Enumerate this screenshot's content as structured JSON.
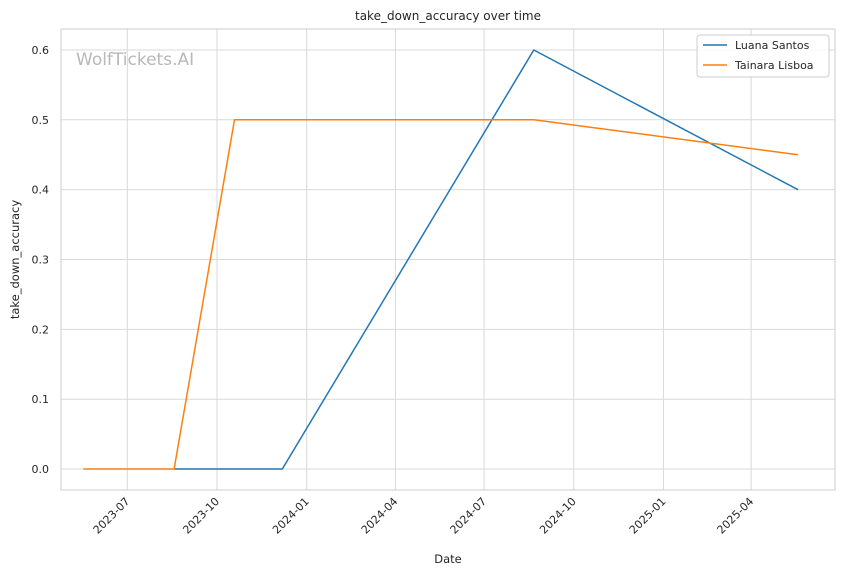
{
  "chart_data": {
    "type": "line",
    "title": "take_down_accuracy over time",
    "xlabel": "Date",
    "ylabel": "take_down_accuracy",
    "watermark": "WolfTickets.AI",
    "x_ticks": [
      "2023-07",
      "2023-10",
      "2024-01",
      "2024-04",
      "2024-07",
      "2024-10",
      "2025-01",
      "2025-04"
    ],
    "y_ticks": [
      "0.0",
      "0.1",
      "0.2",
      "0.3",
      "0.4",
      "0.5",
      "0.6"
    ],
    "xlim": [
      "2023-04-24",
      "2025-06-26"
    ],
    "ylim": [
      -0.03,
      0.63
    ],
    "grid": true,
    "legend_position": "top-right",
    "series": [
      {
        "name": "Luana Santos",
        "color": "#1f77b4",
        "points": [
          {
            "x": "2023-08-18",
            "y": 0.0
          },
          {
            "x": "2023-12-07",
            "y": 0.0
          },
          {
            "x": "2024-08-21",
            "y": 0.6
          },
          {
            "x": "2025-05-19",
            "y": 0.4
          }
        ]
      },
      {
        "name": "Tainara Lisboa",
        "color": "#ff7f0e",
        "points": [
          {
            "x": "2023-05-17",
            "y": 0.0
          },
          {
            "x": "2023-08-18",
            "y": 0.0
          },
          {
            "x": "2023-10-19",
            "y": 0.5
          },
          {
            "x": "2024-08-21",
            "y": 0.5
          },
          {
            "x": "2025-05-19",
            "y": 0.45
          }
        ]
      }
    ]
  }
}
